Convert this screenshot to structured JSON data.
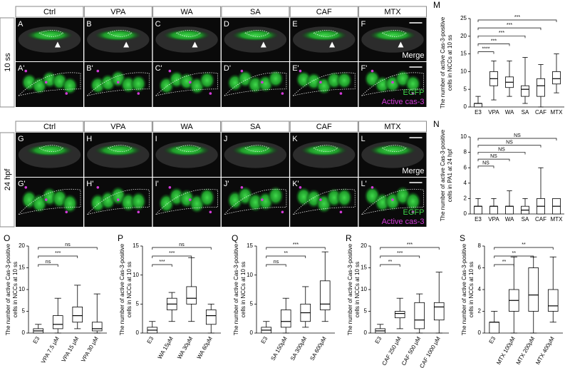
{
  "micrographs": [
    {
      "stage": "10 ss",
      "columns": [
        "Ctrl",
        "VPA",
        "WA",
        "SA",
        "CAF",
        "MTX"
      ],
      "top_labels": [
        "A",
        "B",
        "C",
        "D",
        "E",
        "F"
      ],
      "bottom_labels": [
        "A'",
        "B'",
        "C'",
        "D'",
        "E'",
        "F'"
      ],
      "merge": "Merge",
      "channels": [
        "EGFP",
        "Active cas-3"
      ]
    },
    {
      "stage": "24 hpf",
      "columns": [
        "Ctrl",
        "VPA",
        "WA",
        "SA",
        "CAF",
        "MTX"
      ],
      "top_labels": [
        "G",
        "H",
        "I",
        "J",
        "K",
        "L"
      ],
      "bottom_labels": [
        "G'",
        "H'",
        "I'",
        "J'",
        "K'",
        "L'"
      ],
      "merge": "Merge",
      "channels": [
        "EGFP",
        "Active cas-3"
      ]
    }
  ],
  "chart_data": [
    {
      "type": "box",
      "panel": "M",
      "y_label": [
        "The number of active Cas-3-positive",
        "cells in NCCs at 10 ss"
      ],
      "categories": [
        "E3",
        "VPA",
        "WA",
        "SA",
        "CAF",
        "MTX"
      ],
      "ylim": [
        0,
        25
      ],
      "yticks": [
        0,
        5,
        10,
        15,
        20,
        25
      ],
      "boxes": [
        {
          "min": 0,
          "q1": 0,
          "median": 1,
          "q3": 1,
          "max": 3
        },
        {
          "min": 2,
          "q1": 6,
          "median": 8,
          "q3": 10,
          "max": 13
        },
        {
          "min": 3,
          "q1": 5.5,
          "median": 7,
          "q3": 8.5,
          "max": 13
        },
        {
          "min": 1,
          "q1": 3,
          "median": 5,
          "q3": 6,
          "max": 14
        },
        {
          "min": 0,
          "q1": 3,
          "median": 6,
          "q3": 8,
          "max": 12
        },
        {
          "min": 4,
          "q1": 6.5,
          "median": 8,
          "q3": 10,
          "max": 15
        }
      ],
      "significance": [
        null,
        "****",
        "***",
        "***",
        "***",
        "***"
      ]
    },
    {
      "type": "box",
      "panel": "N",
      "y_label": [
        "The number of active Cas-3-positive",
        "cells in PA1 at 24 hpf"
      ],
      "categories": [
        "E3",
        "VPA",
        "WA",
        "SA",
        "CAF",
        "MTX"
      ],
      "ylim": [
        0,
        10
      ],
      "yticks": [
        0,
        2,
        4,
        6,
        8,
        10
      ],
      "boxes": [
        {
          "min": 0,
          "q1": 0,
          "median": 1,
          "q3": 1,
          "max": 2
        },
        {
          "min": 0,
          "q1": 0,
          "median": 1,
          "q3": 1,
          "max": 2
        },
        {
          "min": 0,
          "q1": 0,
          "median": 1,
          "q3": 1,
          "max": 3
        },
        {
          "min": 0,
          "q1": 0,
          "median": 0.5,
          "q3": 1,
          "max": 2
        },
        {
          "min": 0,
          "q1": 0,
          "median": 1,
          "q3": 2,
          "max": 6
        },
        {
          "min": 0,
          "q1": 0,
          "median": 1,
          "q3": 2,
          "max": 2
        }
      ],
      "significance": [
        null,
        "NS",
        "NS",
        "NS",
        "NS",
        "NS"
      ]
    },
    {
      "type": "box",
      "panel": "O",
      "y_label": [
        "The number of active Cas-3-positive",
        "cells in NCCs at 10 ss"
      ],
      "categories": [
        "E3",
        "VPA 7.5 μM",
        "VPA 15 μM",
        "VPA 30 μM"
      ],
      "ylim": [
        0,
        20
      ],
      "yticks": [
        0,
        5,
        10,
        15,
        20
      ],
      "boxes": [
        {
          "min": 0,
          "q1": 0,
          "median": 0.5,
          "q3": 1,
          "max": 2
        },
        {
          "min": 0,
          "q1": 1,
          "median": 2,
          "q3": 4,
          "max": 8
        },
        {
          "min": 1,
          "q1": 2.5,
          "median": 4,
          "q3": 6,
          "max": 11
        },
        {
          "min": 0,
          "q1": 0.5,
          "median": 1,
          "q3": 2.5,
          "max": 9
        }
      ],
      "significance": [
        null,
        "ns",
        "***",
        "ns"
      ]
    },
    {
      "type": "box",
      "panel": "P",
      "y_label": [
        "The number of active Cas-3-positive",
        "cells in NCCs at 10 ss"
      ],
      "categories": [
        "E3",
        "WA 15μM",
        "WA 30μM",
        "WA 60μM"
      ],
      "ylim": [
        0,
        15
      ],
      "yticks": [
        0,
        5,
        10,
        15
      ],
      "boxes": [
        {
          "min": 0,
          "q1": 0,
          "median": 0.5,
          "q3": 1,
          "max": 2
        },
        {
          "min": 2,
          "q1": 4,
          "median": 5,
          "q3": 6,
          "max": 7
        },
        {
          "min": 2,
          "q1": 5,
          "median": 6,
          "q3": 8,
          "max": 13
        },
        {
          "min": 0,
          "q1": 1.5,
          "median": 3,
          "q3": 4,
          "max": 5
        }
      ],
      "significance": [
        null,
        "***",
        "***",
        "ns"
      ]
    },
    {
      "type": "box",
      "panel": "Q",
      "y_label": [
        "The number of active Cas-3-positive",
        "cells in NCCs at 10 ss"
      ],
      "categories": [
        "E3",
        "SA 150μM",
        "SA 300μM",
        "SA 600μM"
      ],
      "ylim": [
        0,
        15
      ],
      "yticks": [
        0,
        5,
        10,
        15
      ],
      "boxes": [
        {
          "min": 0,
          "q1": 0,
          "median": 0.5,
          "q3": 1,
          "max": 2
        },
        {
          "min": 0,
          "q1": 1,
          "median": 2,
          "q3": 4,
          "max": 6
        },
        {
          "min": 1,
          "q1": 2,
          "median": 3.5,
          "q3": 5,
          "max": 8
        },
        {
          "min": 2,
          "q1": 4,
          "median": 5,
          "q3": 9,
          "max": 14
        }
      ],
      "significance": [
        null,
        "ns",
        "**",
        "***"
      ]
    },
    {
      "type": "box",
      "panel": "R",
      "y_label": [
        "The number of active Cas-3-positive",
        "cells in NCCs at 10 ss"
      ],
      "categories": [
        "E3",
        "CAF 250 μM",
        "CAF 500 μM",
        "CAF 1000 μM"
      ],
      "ylim": [
        0,
        20
      ],
      "yticks": [
        0,
        5,
        10,
        15,
        20
      ],
      "boxes": [
        {
          "min": 0,
          "q1": 0,
          "median": 0.5,
          "q3": 1,
          "max": 2
        },
        {
          "min": 1,
          "q1": 3.5,
          "median": 4.5,
          "q3": 5,
          "max": 8
        },
        {
          "min": 0,
          "q1": 1,
          "median": 3,
          "q3": 7,
          "max": 9
        },
        {
          "min": 0,
          "q1": 3,
          "median": 6,
          "q3": 7,
          "max": 14
        }
      ],
      "significance": [
        null,
        "**",
        "***",
        "***"
      ]
    },
    {
      "type": "box",
      "panel": "S",
      "y_label": [
        "The number of active Cas-3-positive",
        "cells in NCCs at 10 ss"
      ],
      "categories": [
        "E3",
        "MTX 100μM",
        "MTX 200μM",
        "MTX 400μM"
      ],
      "ylim": [
        0,
        8
      ],
      "yticks": [
        0,
        2,
        4,
        6,
        8
      ],
      "boxes": [
        {
          "min": 0,
          "q1": 0,
          "median": 1,
          "q3": 1,
          "max": 2
        },
        {
          "min": 0,
          "q1": 2,
          "median": 3,
          "q3": 4,
          "max": 7
        },
        {
          "min": 0,
          "q1": 2,
          "median": 3.5,
          "q3": 6,
          "max": 7
        },
        {
          "min": 1,
          "q1": 2,
          "median": 2.5,
          "q3": 4,
          "max": 7
        }
      ],
      "significance": [
        null,
        "**",
        "**",
        "**"
      ]
    }
  ]
}
